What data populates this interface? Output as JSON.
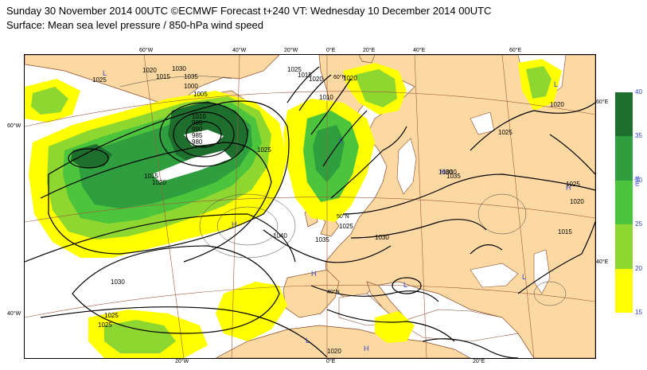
{
  "header": {
    "line1": "Sunday 30 November 2014 00UTC ©ECMWF Forecast t+240 VT: Wednesday 10 December 2014 00UTC",
    "line2": "Surface: Mean sea level pressure / 850-hPa wind speed"
  },
  "map": {
    "lon_labels_top": [
      "60°W",
      "40°W",
      "20°W",
      "0°E",
      "20°E",
      "40°E",
      "60°E"
    ],
    "lon_labels_bottom": [
      "20°W",
      "0°E",
      "20°E"
    ],
    "lat_labels_left": [
      "60°W",
      "40°W"
    ],
    "lat_labels_right": [
      "60°E",
      "40°E"
    ],
    "inner_labels": [
      "60°N",
      "50°N",
      "40°N"
    ],
    "isobar_labels": [
      "1025",
      "1020",
      "1015",
      "1030",
      "1035",
      "1000",
      "1005",
      "1010",
      "995",
      "990",
      "985",
      "980",
      "1025",
      "1015",
      "1020",
      "1025",
      "1030",
      "1035",
      "1040",
      "1025",
      "1030",
      "1025",
      "1020",
      "1030",
      "1025",
      "1015",
      "1020",
      "1020",
      "1025",
      "1030",
      "1020",
      "1035",
      "1025",
      "1010",
      "1015",
      "1020"
    ],
    "pressure_centres": [
      "L",
      "H",
      "L",
      "H",
      "H",
      "L",
      "H",
      "L",
      "L",
      "H",
      "L"
    ],
    "colors": {
      "land": "#fcd9a3",
      "sea": "#ffffff",
      "coast": "#8a4b2a",
      "graticule": "#a05a3a",
      "isobar": "#000000"
    }
  },
  "legend": {
    "unit": "m/s",
    "ticks": [
      "40",
      "35",
      "30",
      "25",
      "20",
      "15"
    ],
    "colors": [
      "#1e6e2e",
      "#2e9e3e",
      "#4cc43c",
      "#8ed630",
      "#ffff00"
    ]
  }
}
